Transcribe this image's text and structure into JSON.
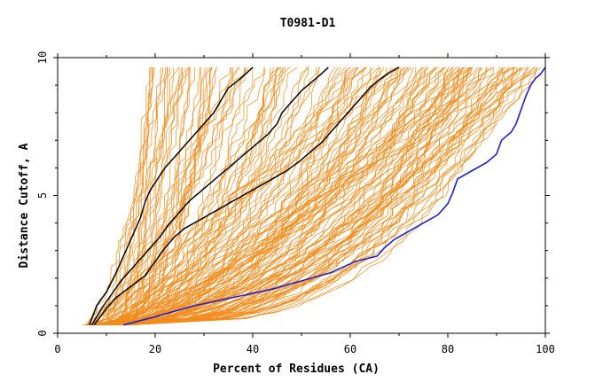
{
  "chart_data": {
    "type": "line",
    "title": "T0981-D1",
    "xlabel": "Percent of Residues (CA)",
    "ylabel": "Distance Cutoff, A",
    "xlim": [
      0,
      100
    ],
    "ylim": [
      0,
      10
    ],
    "x_ticks": [
      0,
      20,
      40,
      60,
      80,
      100
    ],
    "y_ticks": [
      0,
      5,
      10
    ],
    "grid": false,
    "legend": "none",
    "colors": {
      "background_models": "#f28c1c",
      "highlighted_models": "#000000",
      "best_model": "#1f1fcc",
      "axes": "#000000"
    },
    "highlighted_series": [
      {
        "color": "#000000",
        "x": [
          6.5,
          8,
          10,
          12,
          13,
          14.5,
          16,
          17,
          18,
          19,
          20.5,
          22,
          24,
          26,
          28,
          30,
          32,
          33,
          34,
          35,
          36.5,
          38.5,
          40
        ],
        "y": [
          0.3,
          1.0,
          1.5,
          2.2,
          2.6,
          3.2,
          3.8,
          4.2,
          4.8,
          5.2,
          5.6,
          6.0,
          6.4,
          6.8,
          7.2,
          7.6,
          8.0,
          8.3,
          8.6,
          8.9,
          9.1,
          9.4,
          9.65
        ]
      },
      {
        "color": "#000000",
        "x": [
          7,
          9,
          11,
          13,
          15,
          17,
          19,
          21,
          23,
          25,
          27,
          29,
          31,
          33,
          35,
          37,
          39,
          41,
          43,
          45,
          46,
          48,
          50,
          52,
          54,
          55.5
        ],
        "y": [
          0.3,
          0.9,
          1.4,
          1.9,
          2.3,
          2.7,
          3.1,
          3.5,
          4.0,
          4.4,
          4.8,
          5.1,
          5.4,
          5.7,
          6.0,
          6.3,
          6.6,
          6.9,
          7.2,
          7.6,
          8.0,
          8.4,
          8.8,
          9.1,
          9.4,
          9.65
        ]
      },
      {
        "color": "#000000",
        "x": [
          7.5,
          10,
          12,
          15,
          18,
          20,
          22,
          24,
          26,
          29,
          32,
          35,
          38,
          41,
          44,
          47,
          50,
          52,
          54,
          56,
          58,
          60,
          62,
          64,
          66,
          68,
          70
        ],
        "y": [
          0.3,
          0.9,
          1.3,
          1.7,
          2.1,
          2.6,
          3.1,
          3.5,
          3.8,
          4.1,
          4.4,
          4.7,
          5.0,
          5.3,
          5.6,
          5.9,
          6.3,
          6.6,
          6.9,
          7.3,
          7.7,
          8.1,
          8.5,
          8.9,
          9.2,
          9.45,
          9.65
        ]
      }
    ],
    "best_series": {
      "color": "#1f1fcc",
      "x": [
        13.5,
        20,
        28,
        36,
        44,
        50,
        56,
        61,
        65.5,
        67,
        69,
        72,
        75,
        78,
        80,
        81,
        82,
        85,
        88,
        90,
        91,
        93,
        94,
        95,
        96,
        97,
        98,
        99,
        100
      ],
      "y": [
        0.3,
        0.6,
        1.0,
        1.3,
        1.6,
        1.9,
        2.2,
        2.6,
        2.8,
        3.1,
        3.4,
        3.7,
        4.0,
        4.3,
        4.7,
        5.1,
        5.6,
        5.9,
        6.2,
        6.5,
        7.0,
        7.3,
        7.6,
        8.1,
        8.6,
        9.0,
        9.25,
        9.4,
        9.65
      ]
    }
  }
}
